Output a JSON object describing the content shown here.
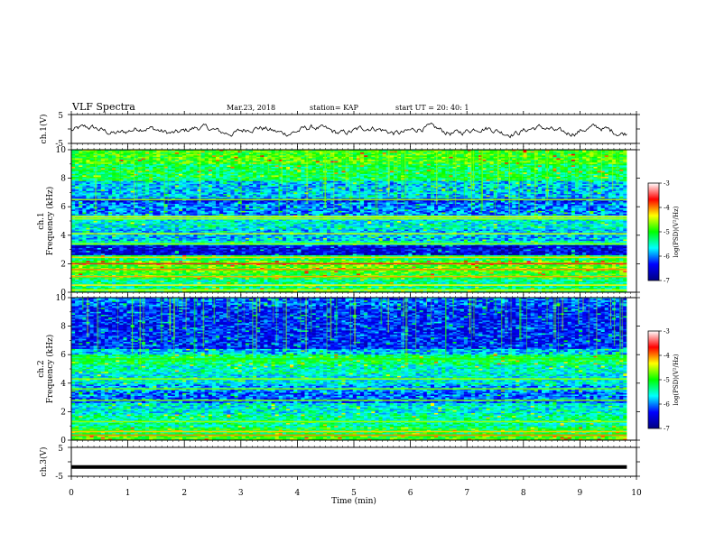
{
  "header": {
    "title": "VLF Spectra",
    "date": "Mar.23, 2018",
    "station": "station= KAP",
    "start_ut": "start  UT =   20: 40: 1"
  },
  "chart_data": {
    "type": "heatmap",
    "x_axis": {
      "label": "Time  (min)",
      "range": [
        0,
        10
      ],
      "ticks": [
        0,
        1,
        2,
        3,
        4,
        5,
        6,
        7,
        8,
        9,
        10
      ],
      "data_end": 9.83
    },
    "panels": [
      {
        "id": "ch1-waveform",
        "type": "line",
        "ylabel": "ch.1(V)",
        "ylim": [
          -5,
          5
        ],
        "ytick_labels": [
          "5",
          "-5"
        ],
        "mean": -0.5,
        "amplitude": 1.4,
        "points": 500
      },
      {
        "id": "ch1-spectrogram",
        "type": "heatmap",
        "ylabel_channel": "ch.1",
        "ylabel": "Frequency  (kHz)",
        "ylim": [
          0,
          10
        ],
        "yticks": [
          0,
          2,
          4,
          6,
          8,
          10
        ],
        "bands": [
          {
            "from": 9.0,
            "to": 10.0,
            "level": -4.9
          },
          {
            "from": 7.8,
            "to": 9.0,
            "level": -5.2
          },
          {
            "from": 6.6,
            "to": 7.8,
            "level": -5.8
          },
          {
            "from": 6.3,
            "to": 6.6,
            "level": -6.3
          },
          {
            "from": 5.4,
            "to": 6.3,
            "level": -6.0
          },
          {
            "from": 5.1,
            "to": 5.4,
            "level": -5.5
          },
          {
            "from": 4.4,
            "to": 5.1,
            "level": -5.6
          },
          {
            "from": 3.6,
            "to": 4.4,
            "level": -5.8
          },
          {
            "from": 3.3,
            "to": 3.6,
            "level": -5.5
          },
          {
            "from": 2.6,
            "to": 3.3,
            "level": -6.5
          },
          {
            "from": 2.2,
            "to": 2.6,
            "level": -5.2
          },
          {
            "from": 1.4,
            "to": 2.2,
            "level": -4.8
          },
          {
            "from": 0.9,
            "to": 1.4,
            "level": -5.0
          },
          {
            "from": 0.3,
            "to": 0.9,
            "level": -5.4
          },
          {
            "from": 0.0,
            "to": 0.3,
            "level": -5.2
          }
        ],
        "lines": [
          {
            "f": 6.5,
            "level": -4.6
          },
          {
            "f": 5.3,
            "level": -4.3
          },
          {
            "f": 5.15,
            "level": -4.5
          },
          {
            "f": 4.1,
            "level": -4.5
          },
          {
            "f": 3.4,
            "level": -4.6
          },
          {
            "f": 2.45,
            "level": -4.2
          },
          {
            "f": 2.0,
            "level": -3.6
          },
          {
            "f": 1.6,
            "level": -4.0
          },
          {
            "f": 1.1,
            "level": -4.1
          },
          {
            "f": 0.5,
            "level": -4.3
          },
          {
            "f": 0.15,
            "level": -4.4
          }
        ]
      },
      {
        "id": "ch2-spectrogram",
        "type": "heatmap",
        "ylabel_channel": "ch.2",
        "ylabel": "Frequency  (kHz)",
        "ylim": [
          0,
          10
        ],
        "yticks": [
          0,
          2,
          4,
          6,
          8,
          10
        ],
        "bands": [
          {
            "from": 9.4,
            "to": 10.0,
            "level": -6.1
          },
          {
            "from": 6.4,
            "to": 9.4,
            "level": -6.3
          },
          {
            "from": 6.0,
            "to": 6.4,
            "level": -5.8
          },
          {
            "from": 5.3,
            "to": 6.0,
            "level": -5.2
          },
          {
            "from": 4.7,
            "to": 5.3,
            "level": -5.5
          },
          {
            "from": 3.9,
            "to": 4.7,
            "level": -5.6
          },
          {
            "from": 3.4,
            "to": 3.9,
            "level": -5.9
          },
          {
            "from": 2.6,
            "to": 3.4,
            "level": -6.1
          },
          {
            "from": 1.8,
            "to": 2.6,
            "level": -5.6
          },
          {
            "from": 0.9,
            "to": 1.8,
            "level": -5.4
          },
          {
            "from": 0.3,
            "to": 0.9,
            "level": -5.1
          },
          {
            "from": 0.0,
            "to": 0.3,
            "level": -4.9
          }
        ],
        "lines": [
          {
            "f": 5.7,
            "level": -4.9
          },
          {
            "f": 4.3,
            "level": -4.6
          },
          {
            "f": 3.6,
            "level": -4.7
          },
          {
            "f": 2.8,
            "level": -4.7
          },
          {
            "f": 1.3,
            "level": -4.6
          },
          {
            "f": 0.6,
            "level": -4.2
          },
          {
            "f": 0.35,
            "level": -4.0
          }
        ]
      },
      {
        "id": "ch3-waveform",
        "type": "line",
        "ylabel": "ch.3(V)",
        "ylim": [
          -5,
          5
        ],
        "ytick_labels": [
          "5",
          "-5"
        ],
        "constant": -1.8
      }
    ],
    "colorbar": {
      "label": "log(PSD)(V²/Hz)",
      "range": [
        -7,
        -3
      ],
      "ticks": [
        "-3",
        "-4",
        "-5",
        "-6",
        "-7"
      ],
      "colormap": [
        "#000080",
        "#0000ff",
        "#00ffff",
        "#00ff00",
        "#ffff00",
        "#ff0000",
        "#ffffff"
      ]
    }
  }
}
